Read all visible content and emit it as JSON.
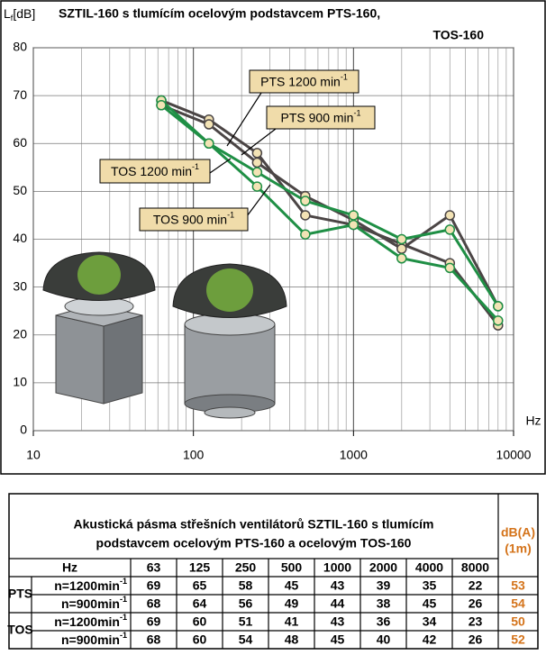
{
  "chart_data": {
    "type": "line",
    "title": [
      "SZTIL-160 s tlumícím ocelovým podstavcem PTS-160,",
      "TOS-160"
    ],
    "y_label": {
      "symbol": "L",
      "subscript": "f",
      "unit": "[dB]"
    },
    "x_label": "Hz",
    "x": [
      63,
      125,
      250,
      500,
      1000,
      2000,
      4000,
      8000
    ],
    "xlim": [
      10,
      10000
    ],
    "xticks": [
      10,
      100,
      1000,
      10000
    ],
    "xscale": "log",
    "ylim": [
      0,
      80
    ],
    "yticks": [
      0,
      10,
      20,
      30,
      40,
      50,
      60,
      70,
      80
    ],
    "grid": true,
    "series": [
      {
        "name": "PTS 1200 min",
        "exponent": "-1",
        "color": "#4b4545",
        "values": [
          69,
          65,
          58,
          45,
          43,
          39,
          35,
          22
        ]
      },
      {
        "name": "PTS 900 min",
        "exponent": "-1",
        "color": "#4b4545",
        "values": [
          68,
          64,
          56,
          49,
          44,
          38,
          45,
          26
        ]
      },
      {
        "name": "TOS 1200 min",
        "exponent": "-1",
        "color": "#1f8f45",
        "values": [
          69,
          60,
          51,
          41,
          43,
          36,
          34,
          23
        ]
      },
      {
        "name": "TOS 900 min",
        "exponent": "-1",
        "color": "#1f8f45",
        "values": [
          68,
          60,
          54,
          48,
          45,
          40,
          42,
          26
        ]
      }
    ]
  },
  "table": {
    "title": [
      "Akustická pásma střešních ventilátorů SZTIL-160 s tlumícím",
      "podstavcem ocelovým PTS-160 a ocelovým TOS-160"
    ],
    "dba_header": [
      "dB(A)",
      "(1m)"
    ],
    "hz_label": "Hz",
    "frequencies": [
      "63",
      "125",
      "250",
      "500",
      "1000",
      "2000",
      "4000",
      "8000"
    ],
    "groups": [
      {
        "name": "PTS",
        "rows": [
          {
            "label": "n=1200min",
            "exponent": "-1",
            "values": [
              "69",
              "65",
              "58",
              "45",
              "43",
              "39",
              "35",
              "22"
            ],
            "dba": "53"
          },
          {
            "label": "n=900min",
            "exponent": "-1",
            "values": [
              "68",
              "64",
              "56",
              "49",
              "44",
              "38",
              "45",
              "26"
            ],
            "dba": "54"
          }
        ]
      },
      {
        "name": "TOS",
        "rows": [
          {
            "label": "n=1200min",
            "exponent": "-1",
            "values": [
              "69",
              "60",
              "51",
              "41",
              "43",
              "36",
              "34",
              "23"
            ],
            "dba": "50"
          },
          {
            "label": "n=900min",
            "exponent": "-1",
            "values": [
              "68",
              "60",
              "54",
              "48",
              "45",
              "40",
              "42",
              "26"
            ],
            "dba": "52"
          }
        ]
      }
    ]
  }
}
